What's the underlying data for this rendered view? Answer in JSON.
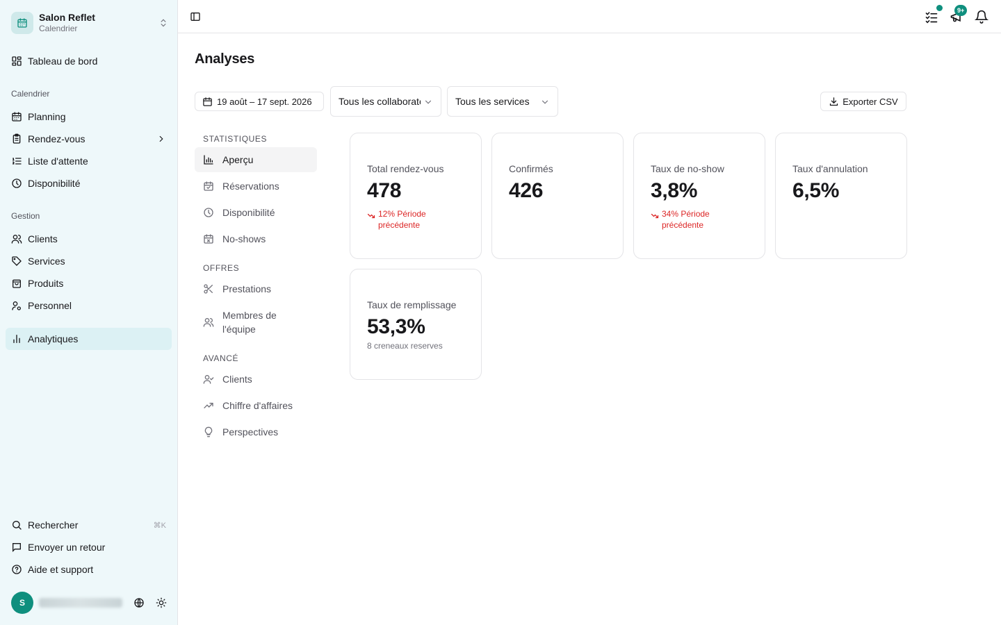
{
  "brand": {
    "name": "Salon Reflet",
    "subtitle": "Calendrier"
  },
  "sidebar": {
    "dashboard": "Tableau de bord",
    "section_calendar": "Calendrier",
    "calendar_items": [
      {
        "label": "Planning",
        "icon": "calendar-icon"
      },
      {
        "label": "Rendez-vous",
        "icon": "clipboard-icon"
      },
      {
        "label": "Liste d'attente",
        "icon": "list-ordered-icon"
      },
      {
        "label": "Disponibilité",
        "icon": "clock-icon"
      }
    ],
    "section_management": "Gestion",
    "management_items": [
      {
        "label": "Clients",
        "icon": "users-icon"
      },
      {
        "label": "Services",
        "icon": "tag-icon"
      },
      {
        "label": "Produits",
        "icon": "shopping-bag-icon"
      },
      {
        "label": "Personnel",
        "icon": "user-cog-icon"
      }
    ],
    "analytics": "Analytiques",
    "footer_items": [
      {
        "label": "Rechercher",
        "shortcut": "⌘K"
      },
      {
        "label": "Envoyer un retour"
      },
      {
        "label": "Aide et support"
      }
    ],
    "user": {
      "initial": "S"
    }
  },
  "topbar": {
    "notifications_badge": "9+"
  },
  "main": {
    "title": "Analyses",
    "filters": {
      "date_range": "19 août – 17 sept. 2026",
      "staff": "Tous les collaborateurs",
      "services": "Tous les services",
      "export": "Exporter CSV"
    },
    "subnav": {
      "stats_label": "STATISTIQUES",
      "stats": [
        "Aperçu",
        "Réservations",
        "Disponibilité",
        "No-shows"
      ],
      "offers_label": "OFFRES",
      "offers": [
        "Prestations",
        "Membres de l'équipe"
      ],
      "advanced_label": "AVANCÉ",
      "advanced": [
        "Clients",
        "Chiffre d'affaires",
        "Perspectives"
      ]
    },
    "cards": [
      {
        "label": "Total rendez-vous",
        "value": "478",
        "trend": "12% Période précédente"
      },
      {
        "label": "Confirmés",
        "value": "426"
      },
      {
        "label": "Taux de no-show",
        "value": "3,8%",
        "trend": "34% Période précédente"
      },
      {
        "label": "Taux d'annulation",
        "value": "6,5%"
      },
      {
        "label": "Taux de remplissage",
        "value": "53,3%",
        "sub": "8 creneaux reserves"
      }
    ],
    "colors": {
      "trend_down": "#dc2626",
      "accent": "#0f8f7e"
    }
  }
}
